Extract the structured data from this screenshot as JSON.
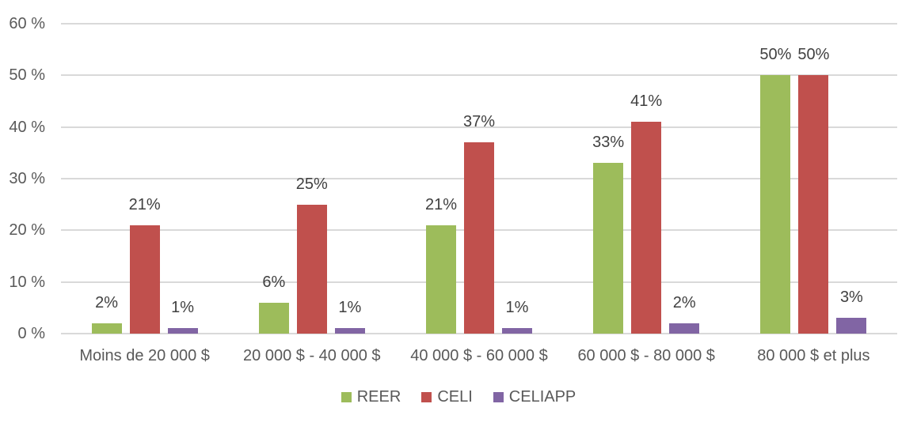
{
  "chart_data": {
    "type": "bar",
    "title": "",
    "xlabel": "",
    "ylabel": "",
    "categories": [
      "Moins de 20 000 $",
      "20 000 $ - 40 000 $",
      "40 000 $ - 60 000 $",
      "60 000 $ - 80 000 $",
      "80 000 $ et plus"
    ],
    "series": [
      {
        "name": "REER",
        "color": "#9dbc5b",
        "values": [
          2,
          6,
          21,
          33,
          50
        ],
        "labels": [
          "2%",
          "6%",
          "21%",
          "33%",
          "50%"
        ]
      },
      {
        "name": "CELI",
        "color": "#c0504d",
        "values": [
          21,
          25,
          37,
          41,
          50
        ],
        "labels": [
          "21%",
          "25%",
          "37%",
          "41%",
          "50%"
        ]
      },
      {
        "name": "CELIAPP",
        "color": "#8165a4",
        "values": [
          1,
          1,
          1,
          2,
          3
        ],
        "labels": [
          "1%",
          "1%",
          "1%",
          "2%",
          "3%"
        ]
      }
    ],
    "ylim": [
      0,
      60
    ],
    "yticks": [
      0,
      10,
      20,
      30,
      40,
      50,
      60
    ],
    "ytick_labels": [
      "0 %",
      "10 %",
      "20 %",
      "30 %",
      "40 %",
      "50 %",
      "60 %"
    ],
    "grid": true,
    "legend_position": "bottom",
    "colors": {
      "background": "#ffffff",
      "gridline": "#d9d9d9",
      "axis_text": "#595959",
      "data_label_text": "#404040"
    }
  }
}
